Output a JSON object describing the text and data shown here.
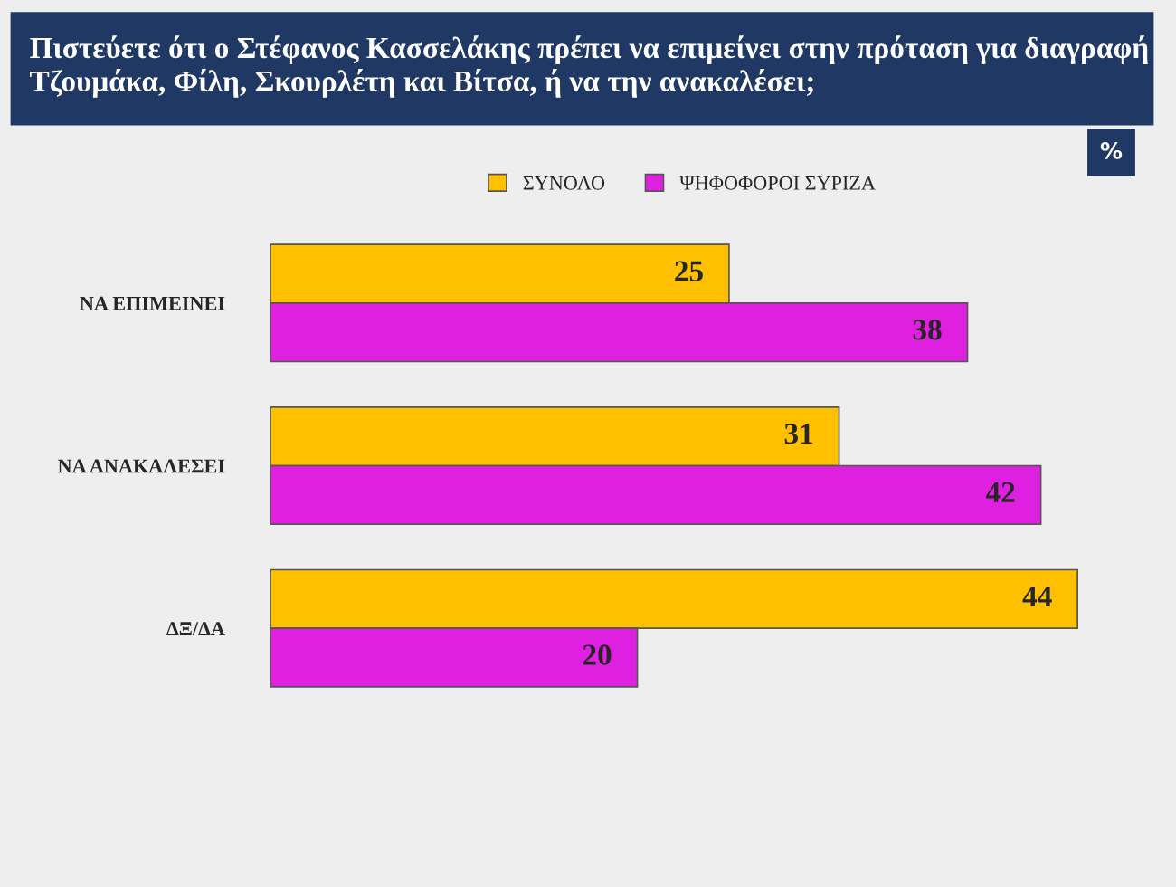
{
  "chart_data": {
    "type": "bar",
    "orientation": "horizontal",
    "title": "Πιστεύετε ότι ο Στέφανος Κασσελάκης πρέπει να επιμείνει στην πρόταση για διαγραφή Τζουμάκα, Φίλη, Σκουρλέτη και Βίτσα, ή να την ανακαλέσει;",
    "annotations": [
      "%"
    ],
    "categories": [
      "ΝΑ ΕΠΙΜΕΙΝΕΙ",
      "ΝΑ ΑΝΑΚΑΛΕΣΕΙ",
      "ΔΞ/ΔΑ"
    ],
    "series": [
      {
        "name": "ΣΥΝΟΛΟ",
        "color": "#ffc000",
        "values": [
          25,
          31,
          44
        ]
      },
      {
        "name": "ΨΗΦΟΦΟΡΟΙ ΣΥΡΙΖΑ",
        "color": "#e020e0",
        "values": [
          38,
          42,
          20
        ]
      }
    ],
    "data_labels": true,
    "legend": "top",
    "grid": false
  }
}
